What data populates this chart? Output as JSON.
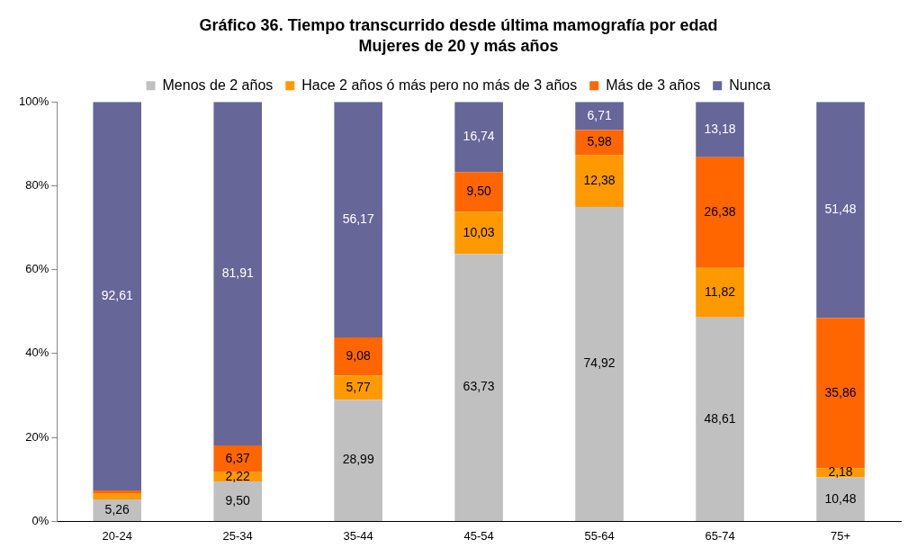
{
  "chart_data": {
    "type": "bar",
    "title": "Gráfico 36. Tiempo transcurrido desde última mamografía por edad",
    "subtitle": "Mujeres de 20 y más años",
    "categories": [
      "20-24",
      "25-34",
      "35-44",
      "45-54",
      "55-64",
      "65-74",
      "75+"
    ],
    "stacked": true,
    "legend": "top",
    "grid": false,
    "ylim": [
      0,
      100
    ],
    "yticks": [
      {
        "value": 0,
        "label": "0%"
      },
      {
        "value": 20,
        "label": "20%"
      },
      {
        "value": 40,
        "label": "40%"
      },
      {
        "value": 60,
        "label": "60%"
      },
      {
        "value": 80,
        "label": "80%"
      },
      {
        "value": 100,
        "label": "100%"
      }
    ],
    "series": [
      {
        "name": "Menos de 2 años",
        "color": "#c0c0c0",
        "values": [
          5.26,
          9.5,
          28.99,
          63.73,
          74.92,
          48.61,
          10.48
        ],
        "value_labels": [
          "5,26",
          "9,50",
          "28,99",
          "63,73",
          "74,92",
          "48,61",
          "10,48"
        ]
      },
      {
        "name": "Hace 2 años ó más pero no más de 3 años",
        "color": "#ff9900",
        "values": [
          1.3,
          2.22,
          5.77,
          10.03,
          12.38,
          11.82,
          2.18
        ],
        "value_labels": [
          null,
          "2,22",
          "5,77",
          "10,03",
          "12,38",
          "11,82",
          "2,18"
        ]
      },
      {
        "name": "Más de 3 años",
        "color": "#ff6600",
        "values": [
          0.8,
          6.37,
          9.08,
          9.5,
          5.98,
          26.38,
          35.86
        ],
        "value_labels": [
          null,
          "6,37",
          "9,08",
          "9,50",
          "5,98",
          "26,38",
          "35,86"
        ]
      },
      {
        "name": "Nunca",
        "color": "#666699",
        "values": [
          92.61,
          81.91,
          56.17,
          16.74,
          6.71,
          13.18,
          51.48
        ],
        "value_labels": [
          "92,61",
          "81,91",
          "56,17",
          "16,74",
          "6,71",
          "13,18",
          "51,48"
        ]
      }
    ]
  }
}
